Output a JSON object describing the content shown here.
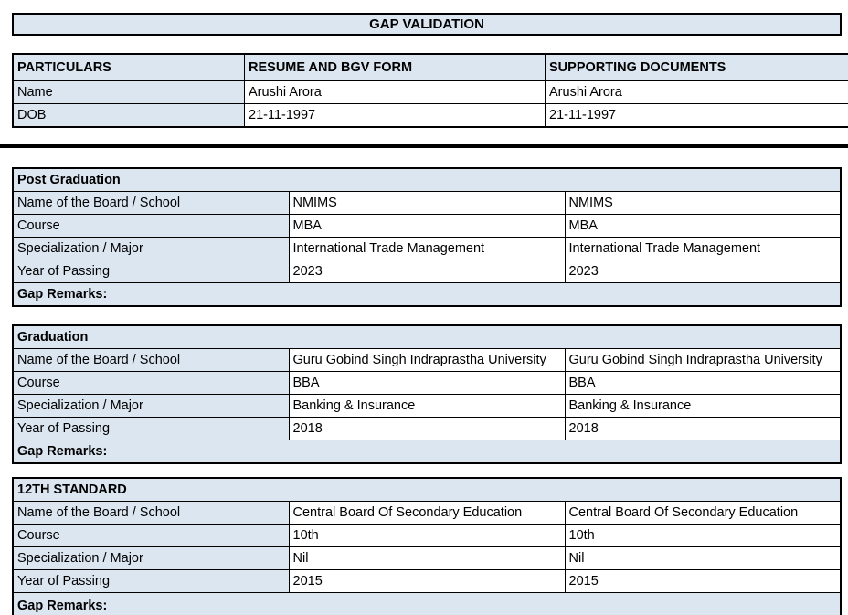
{
  "title": "GAP VALIDATION",
  "colors": {
    "cell_fill": "#dce6f1",
    "border": "#000000",
    "page_background": "#ffffff",
    "text": "#000000"
  },
  "summary": {
    "headers": [
      "PARTICULARS",
      "RESUME AND BGV FORM",
      "SUPPORTING DOCUMENTS"
    ],
    "rows": [
      {
        "label": "Name",
        "values": [
          "Arushi Arora",
          "Arushi Arora"
        ]
      },
      {
        "label": "DOB",
        "values": [
          "21-11-1997",
          "21-11-1997"
        ]
      }
    ]
  },
  "sections": [
    {
      "title": "Post Graduation",
      "rows": [
        {
          "label": "Name of the Board / School",
          "values": [
            "NMIMS",
            "NMIMS"
          ]
        },
        {
          "label": "Course",
          "values": [
            "MBA",
            "MBA"
          ]
        },
        {
          "label": "Specialization / Major",
          "values": [
            "International Trade Management",
            "International Trade Management"
          ]
        },
        {
          "label": "Year of Passing",
          "values": [
            "2023",
            "2023"
          ]
        }
      ],
      "gap_remarks": "Gap Remarks:"
    },
    {
      "title": "Graduation",
      "rows": [
        {
          "label": "Name of the Board / School",
          "values": [
            "Guru Gobind Singh Indraprastha University",
            "Guru Gobind Singh Indraprastha University"
          ]
        },
        {
          "label": "Course",
          "values": [
            "BBA",
            "BBA"
          ]
        },
        {
          "label": "Specialization / Major",
          "values": [
            "Banking & Insurance",
            "Banking & Insurance"
          ]
        },
        {
          "label": "Year of Passing",
          "values": [
            "2018",
            "2018"
          ]
        }
      ],
      "gap_remarks": "Gap Remarks:"
    },
    {
      "title": "12TH STANDARD",
      "rows": [
        {
          "label": "Name of the Board / School",
          "values": [
            "Central Board Of Secondary Education",
            "Central Board Of Secondary Education"
          ]
        },
        {
          "label": "Course",
          "values": [
            "10th",
            "10th"
          ]
        },
        {
          "label": "Specialization / Major",
          "values": [
            "Nil",
            "Nil"
          ]
        },
        {
          "label": "Year of Passing",
          "values": [
            "2015",
            "2015"
          ]
        }
      ],
      "gap_remarks": "Gap Remarks:"
    }
  ]
}
